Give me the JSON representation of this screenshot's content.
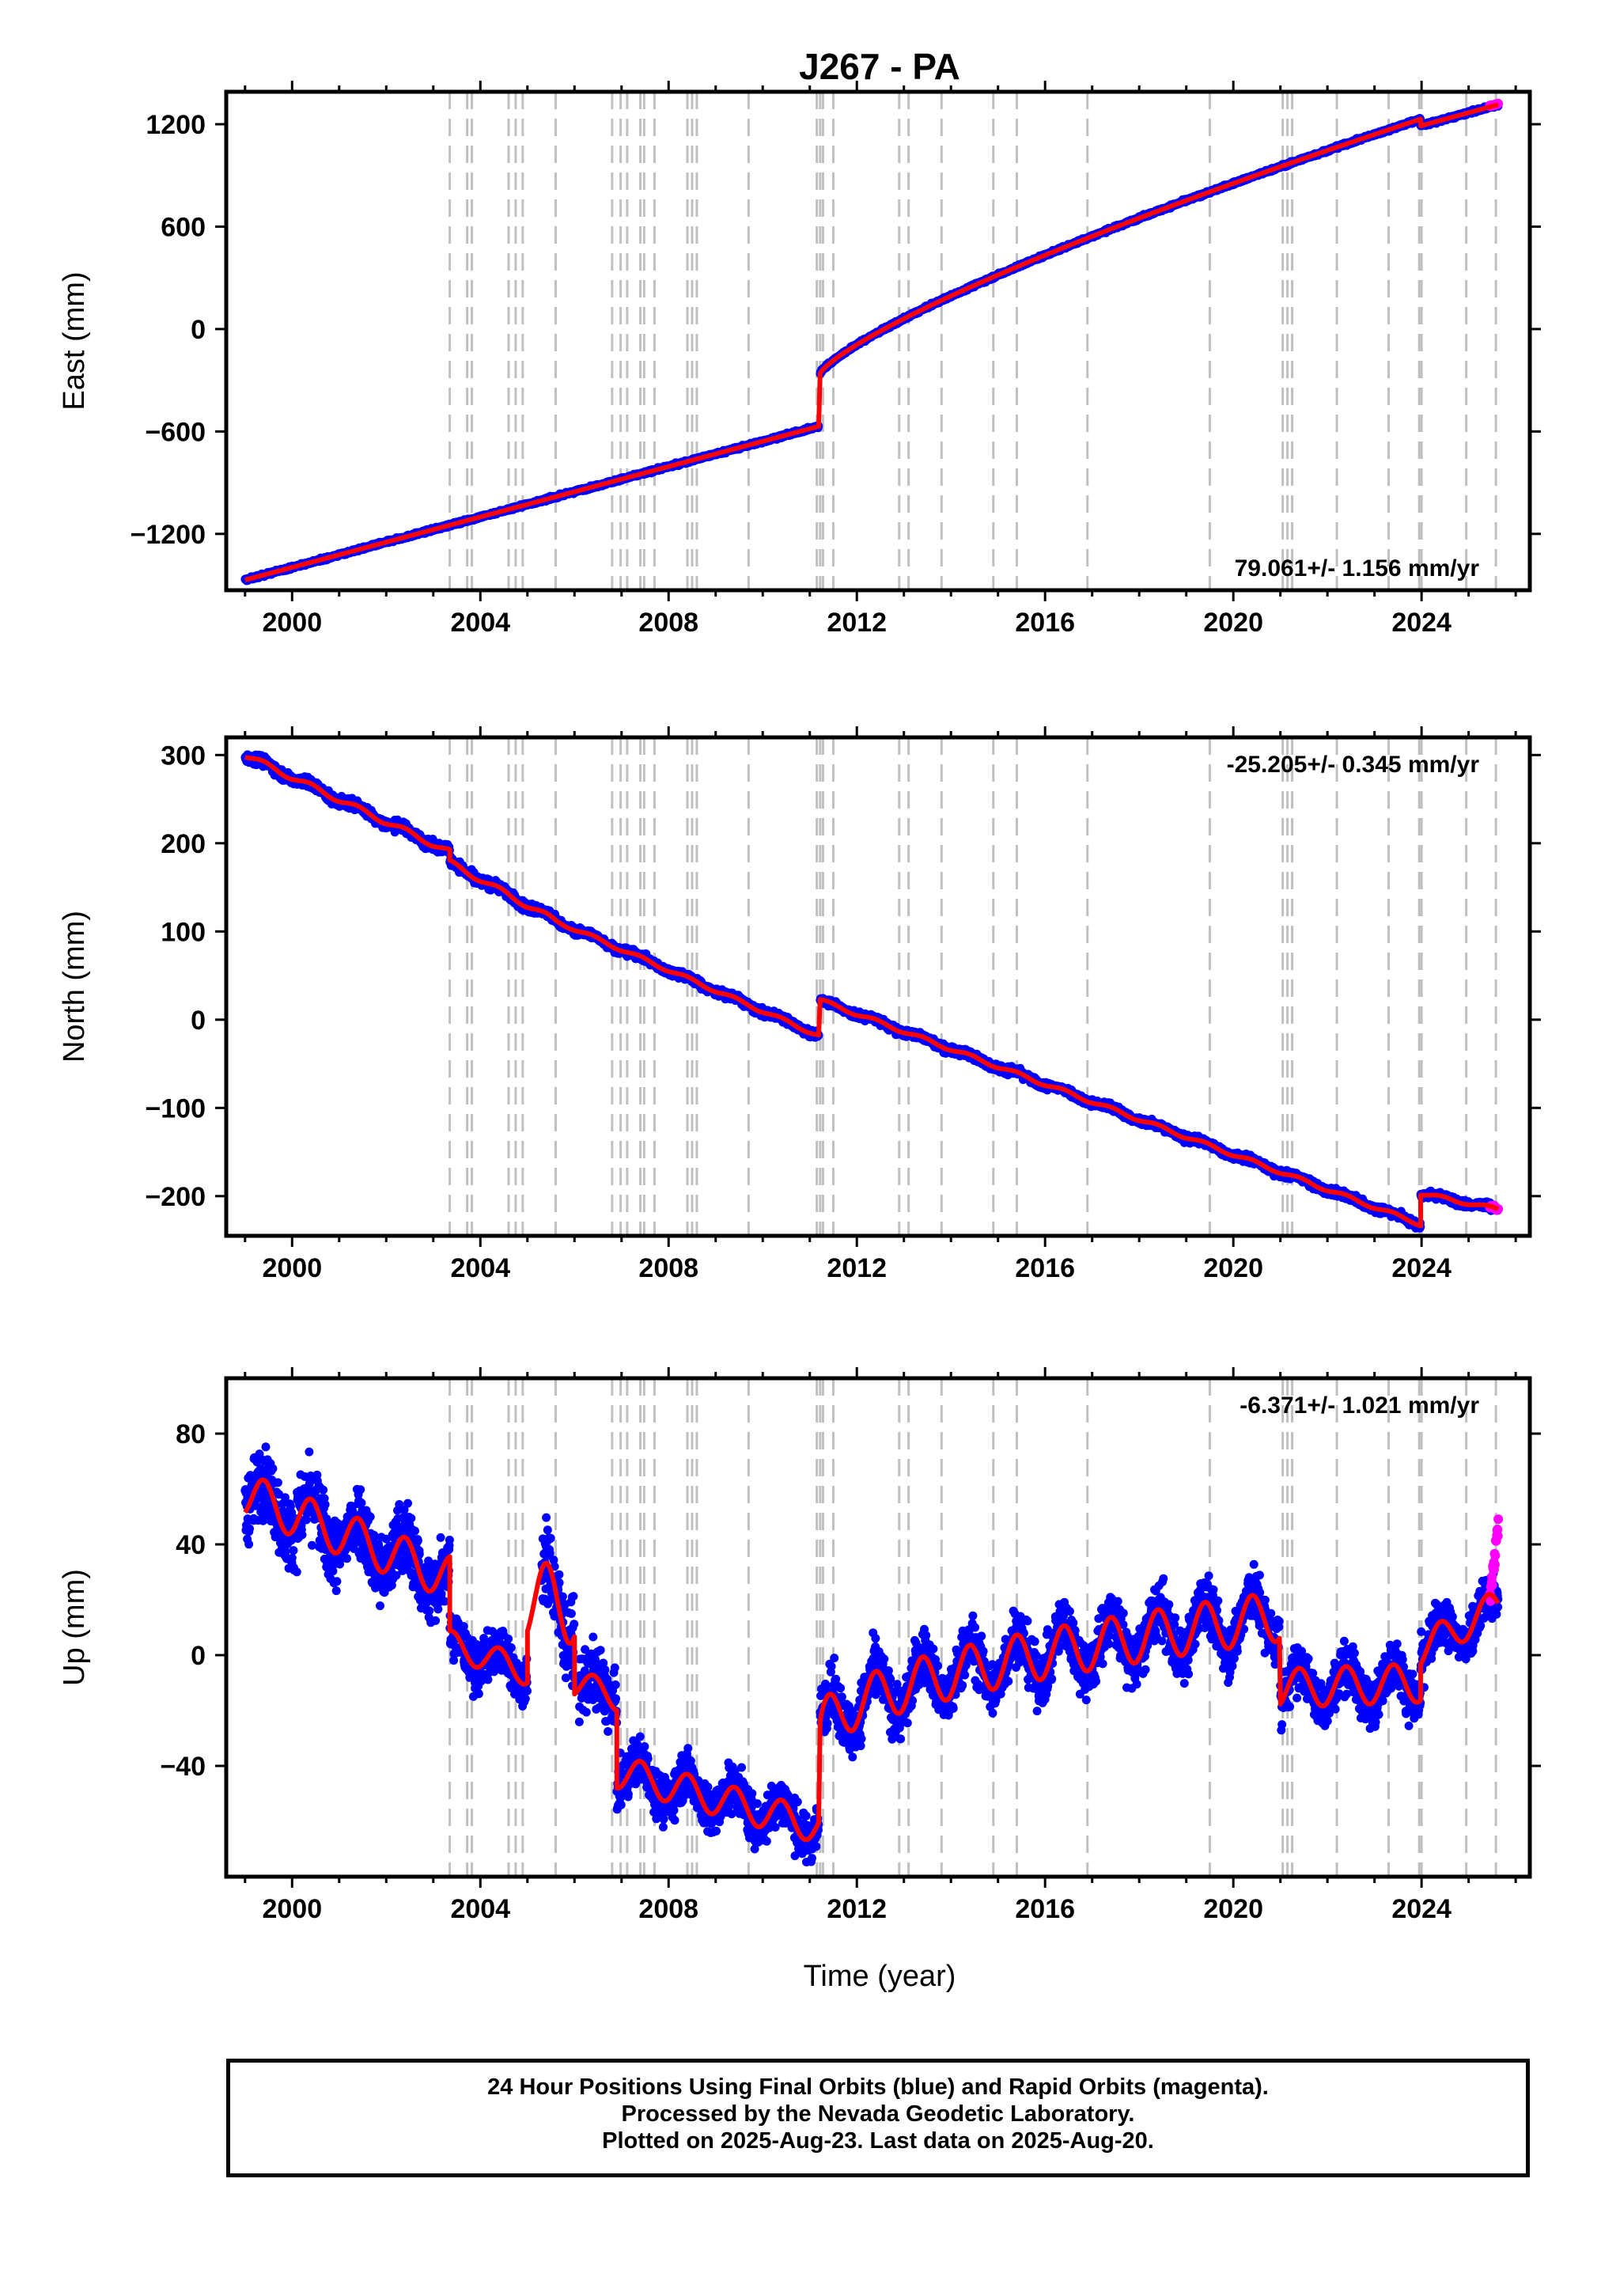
{
  "chart_data": [
    {
      "type": "scatter",
      "title": "J267 - PA",
      "ylabel": "East (mm)",
      "xlabel": "",
      "xlim": [
        1998.6,
        2026.3
      ],
      "ylim": [
        -1530,
        1390
      ],
      "xticks": [
        2000,
        2004,
        2008,
        2012,
        2016,
        2020,
        2024
      ],
      "yticks": [
        -1200,
        -600,
        0,
        600,
        1200
      ],
      "ytick_labels": [
        "−1200",
        "−600",
        "0",
        "600",
        "1200"
      ],
      "rate_text": "79.061+/- 1.156 mm/yr",
      "rate_position": "bottom-right",
      "colors": {
        "final": "#0000ff",
        "rapid": "#ff00ff",
        "model": "#ff0000",
        "event": "#c0c0c0"
      },
      "segments": [
        {
          "x0": 1999.0,
          "x1": 2011.19,
          "y0": -1470,
          "y1": -570,
          "pow": 1,
          "noise": 6,
          "seasonal": 0
        },
        {
          "x0": 2011.19,
          "x1": 2011.22,
          "y0": -570,
          "y1": -260,
          "pow": 1,
          "noise": 6,
          "seasonal": 0
        },
        {
          "x0": 2011.22,
          "x1": 2023.98,
          "y0": -260,
          "y1": 1230,
          "pow": 0.78,
          "noise": 6,
          "seasonal": 0
        },
        {
          "x0": 2023.98,
          "x1": 2025.63,
          "y0": 1190,
          "y1": 1315,
          "pow": 1,
          "noise": 6,
          "seasonal": 0
        }
      ],
      "rapid": {
        "x0": 2025.45,
        "x1": 2025.63,
        "y0": 1305,
        "y1": 1320,
        "noise": 3
      }
    },
    {
      "type": "scatter",
      "title": "",
      "ylabel": "North (mm)",
      "xlabel": "",
      "xlim": [
        1998.6,
        2026.3
      ],
      "ylim": [
        -245,
        320
      ],
      "xticks": [
        2000,
        2004,
        2008,
        2012,
        2016,
        2020,
        2024
      ],
      "yticks": [
        -200,
        -100,
        0,
        100,
        200,
        300
      ],
      "ytick_labels": [
        "−200",
        "−100",
        "0",
        "100",
        "200",
        "300"
      ],
      "rate_text": "-25.205+/- 0.345 mm/yr",
      "rate_position": "top-right",
      "colors": {
        "final": "#0000ff",
        "rapid": "#ff00ff",
        "model": "#ff0000",
        "event": "#c0c0c0"
      },
      "segments": [
        {
          "x0": 1999.0,
          "x1": 2003.35,
          "y0": 300,
          "y1": 190,
          "pow": 1,
          "noise": 4,
          "seasonal": 3
        },
        {
          "x0": 2003.35,
          "x1": 2005.6,
          "y0": 178,
          "y1": 112,
          "pow": 1,
          "noise": 4,
          "seasonal": 3
        },
        {
          "x0": 2005.6,
          "x1": 2011.19,
          "y0": 112,
          "y1": -18,
          "pow": 1,
          "noise": 3,
          "seasonal": 2
        },
        {
          "x0": 2011.22,
          "x1": 2023.98,
          "y0": 22,
          "y1": -232,
          "pow": 1,
          "noise": 3,
          "seasonal": 2
        },
        {
          "x0": 2023.98,
          "x1": 2025.63,
          "y0": -197,
          "y1": -215,
          "pow": 1,
          "noise": 3,
          "seasonal": 2
        }
      ],
      "rapid": {
        "x0": 2025.45,
        "x1": 2025.63,
        "y0": -212,
        "y1": -215,
        "noise": 2
      }
    },
    {
      "type": "scatter",
      "title": "",
      "ylabel": "Up (mm)",
      "xlabel": "Time (year)",
      "xlim": [
        1998.6,
        2026.3
      ],
      "ylim": [
        -80,
        100
      ],
      "xticks": [
        2000,
        2004,
        2008,
        2012,
        2016,
        2020,
        2024
      ],
      "yticks": [
        -40,
        0,
        40,
        80
      ],
      "ytick_labels": [
        "−40",
        "0",
        "40",
        "80"
      ],
      "rate_text": "-6.371+/- 1.021 mm/yr",
      "rate_position": "top-right",
      "colors": {
        "final": "#0000ff",
        "rapid": "#ff00ff",
        "model": "#ff0000",
        "event": "#c0c0c0"
      },
      "segments": [
        {
          "x0": 1999.0,
          "x1": 2003.35,
          "y0": 58,
          "y1": 28,
          "pow": 1,
          "noise": 9,
          "seasonal": 8
        },
        {
          "x0": 2003.35,
          "x1": 2005.0,
          "y0": 4,
          "y1": -6,
          "pow": 1,
          "noise": 6,
          "seasonal": 5
        },
        {
          "x0": 2005.0,
          "x1": 2006.0,
          "y0": 20,
          "y1": 18,
          "pow": 1,
          "noise": 10,
          "seasonal": 14,
          "nodata": [
            2005.0,
            2005.3
          ]
        },
        {
          "x0": 2006.0,
          "x1": 2006.9,
          "y0": -10,
          "y1": -15,
          "pow": 1,
          "noise": 8,
          "seasonal": 5,
          "nodata": [
            2006.0,
            2006.1
          ]
        },
        {
          "x0": 2006.9,
          "x1": 2011.19,
          "y0": -42,
          "y1": -62,
          "pow": 1,
          "noise": 6,
          "seasonal": 6
        },
        {
          "x0": 2011.22,
          "x1": 2020.98,
          "y0": -28,
          "y1": 14,
          "pow": 0.55,
          "noise": 7,
          "seasonal": 9
        },
        {
          "x0": 2021.0,
          "x1": 2023.98,
          "y0": -12,
          "y1": -10,
          "pow": 1,
          "noise": 6,
          "seasonal": 7
        },
        {
          "x0": 2023.98,
          "x1": 2025.63,
          "y0": 2,
          "y1": 18,
          "pow": 1,
          "noise": 6,
          "seasonal": 6
        }
      ],
      "rapid": {
        "x0": 2025.45,
        "x1": 2025.63,
        "y0": 18,
        "y1": 48,
        "noise": 4
      }
    }
  ],
  "event_years": [
    2003.35,
    2003.72,
    2003.82,
    2004.6,
    2004.75,
    2004.9,
    2005.6,
    2006.8,
    2006.98,
    2007.12,
    2007.4,
    2007.48,
    2007.7,
    2008.4,
    2008.5,
    2008.6,
    2009.7,
    2011.15,
    2011.22,
    2011.28,
    2011.5,
    2012.9,
    2013.1,
    2013.8,
    2014.9,
    2015.4,
    2016.9,
    2019.5,
    2021.05,
    2021.15,
    2021.25,
    2022.2,
    2023.3,
    2023.95,
    2024.0,
    2024.95,
    2025.58
  ],
  "caption": {
    "line1": "24 Hour Positions Using Final Orbits (blue) and Rapid Orbits (magenta).",
    "line2": "Processed by the Nevada Geodetic Laboratory.",
    "line3": "Plotted on 2025-Aug-23. Last data on 2025-Aug-20."
  }
}
